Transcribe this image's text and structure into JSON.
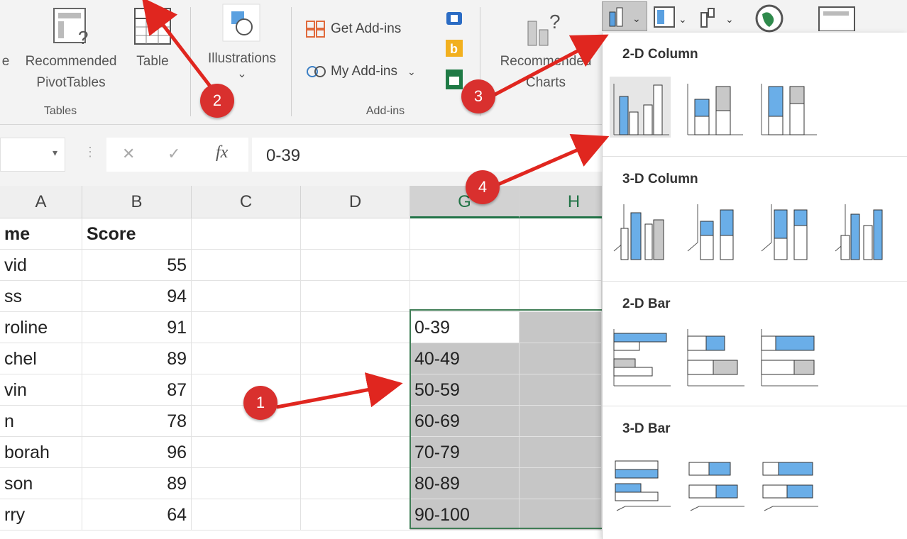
{
  "ribbon": {
    "tables_group": {
      "recommended_pivot_line1": "Recommended",
      "recommended_pivot_line2": "PivotTables",
      "table_label": "Table",
      "group_label": "Tables",
      "partial_left": "e"
    },
    "illustrations": {
      "label": "Illustrations",
      "dropdown": "⌄"
    },
    "addins_group": {
      "get_addins": "Get Add-ins",
      "my_addins": "My Add-ins",
      "group_label": "Add-ins"
    },
    "charts": {
      "recommended_line1": "Recommended",
      "recommended_line2": "Charts"
    }
  },
  "formula_bar": {
    "cancel": "✕",
    "enter": "✓",
    "fx": "fx",
    "value": "0-39"
  },
  "columns": [
    "A",
    "B",
    "C",
    "D",
    "G",
    "H"
  ],
  "sheet": {
    "header_row": {
      "name": "me",
      "score": "Score"
    },
    "rows": [
      {
        "name": "vid",
        "score": "55"
      },
      {
        "name": "ss",
        "score": "94"
      },
      {
        "name": "roline",
        "score": "91"
      },
      {
        "name": "chel",
        "score": "89"
      },
      {
        "name": "vin",
        "score": "87"
      },
      {
        "name": "n",
        "score": "78"
      },
      {
        "name": "borah",
        "score": "96"
      },
      {
        "name": "son",
        "score": "89"
      },
      {
        "name": "rry",
        "score": "64"
      }
    ],
    "bins": [
      "0-39",
      "40-49",
      "50-59",
      "60-69",
      "70-79",
      "80-89",
      "90-100"
    ]
  },
  "chart_menu": {
    "sections": [
      "2-D Column",
      "3-D Column",
      "2-D Bar",
      "3-D Bar"
    ]
  },
  "annotations": [
    "1",
    "2",
    "3",
    "4"
  ],
  "colors": {
    "accent_green": "#217346",
    "chart_blue": "#6aaee8",
    "chart_gray": "#c8c8c8",
    "annotation_red": "#d9302e"
  }
}
